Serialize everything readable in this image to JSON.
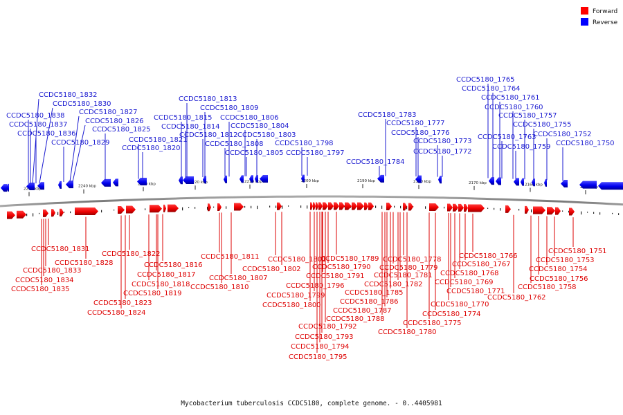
{
  "legend": [
    {
      "label": "Forward",
      "color": "#ff0000"
    },
    {
      "label": "Reverse",
      "color": "#0000ff"
    }
  ],
  "caption": "Mycobacterium tuberculosis CCDC5180, complete genome. - 0..4405981",
  "colors": {
    "forward": "#ff0000",
    "reverse": "#0000ff",
    "backbone": "#888888"
  },
  "ticks": [
    "2250 kbp",
    "2240 kbp",
    "2230 kbp",
    "2220 kbp",
    "2210 kbp",
    "2200 kbp",
    "2190 kbp",
    "2180 kbp",
    "2170 kbp",
    "2160 kbp",
    "2150 kbp"
  ],
  "reverse_genes": [
    "CCDC5180_1832",
    "CCDC5180_1830",
    "CCDC5180_1838",
    "CCDC5180_1827",
    "CCDC5180_1837",
    "CCDC5180_1826",
    "CCDC5180_1836",
    "CCDC5180_1825",
    "CCDC5180_1829",
    "CCDC5180_1821",
    "CCDC5180_1820",
    "CCDC5180_1813",
    "CCDC5180_1809",
    "CCDC5180_1815",
    "CCDC5180_1806",
    "CCDC5180_1814",
    "CCDC5180_1804",
    "CCDC5180_1812",
    "CCDC5180_1803",
    "CCDC5180_1808",
    "CCDC5180_1798",
    "CCDC5180_1805",
    "CCDC5180_1797",
    "CCDC5180_1783",
    "CCDC5180_1777",
    "CCDC5180_1776",
    "CCDC5180_1784",
    "CCDC5180_1773",
    "CCDC5180_1772",
    "CCDC5180_1765",
    "CCDC5180_1764",
    "CCDC5180_1761",
    "CCDC5180_1760",
    "CCDC5180_1757",
    "CCDC5180_1763",
    "CCDC5180_1755",
    "CCDC5180_1759",
    "CCDC5180_1752",
    "CCDC5180_1750"
  ],
  "forward_genes": [
    "CCDC5180_1831",
    "CCDC5180_1828",
    "CCDC5180_1833",
    "CCDC5180_1834",
    "CCDC5180_1835",
    "CCDC5180_1822",
    "CCDC5180_1816",
    "CCDC5180_1817",
    "CCDC5180_1818",
    "CCDC5180_1819",
    "CCDC5180_1823",
    "CCDC5180_1824",
    "CCDC5180_1811",
    "CCDC5180_1807",
    "CCDC5180_1810",
    "CCDC5180_1801",
    "CCDC5180_1802",
    "CCDC5180_1799",
    "CCDC5180_1800",
    "CCDC5180_1796",
    "CCDC5180_1791",
    "CCDC5180_1790",
    "CCDC5180_1789",
    "CCDC5180_1792",
    "CCDC5180_1793",
    "CCDC5180_1794",
    "CCDC5180_1795",
    "CCDC5180_1778",
    "CCDC5180_1779",
    "CCDC5180_1781",
    "CCDC5180_1782",
    "CCDC5180_1785",
    "CCDC5180_1786",
    "CCDC5180_1787",
    "CCDC5180_1788",
    "CCDC5180_1780",
    "CCDC5180_1766",
    "CCDC5180_1767",
    "CCDC5180_1768",
    "CCDC5180_1769",
    "CCDC5180_1771",
    "CCDC5180_1770",
    "CCDC5180_1774",
    "CCDC5180_1775",
    "CCDC5180_1751",
    "CCDC5180_1753",
    "CCDC5180_1754",
    "CCDC5180_1756",
    "CCDC5180_1758",
    "CCDC5180_1762"
  ]
}
